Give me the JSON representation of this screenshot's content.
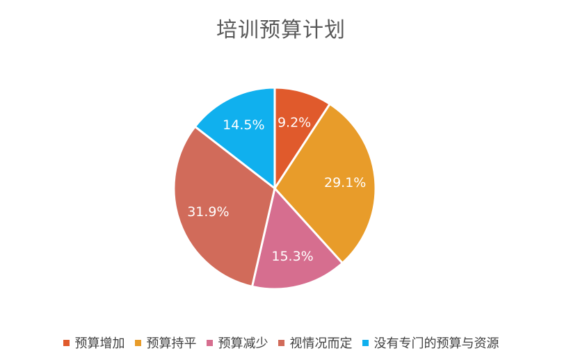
{
  "chart_data": {
    "type": "pie",
    "title": "培训预算计划",
    "categories": [
      "预算增加",
      "预算持平",
      "预算减少",
      "视情况而定",
      "没有专门的预算与资源"
    ],
    "values": [
      9.2,
      29.1,
      15.3,
      31.9,
      14.5
    ],
    "labels": [
      "9.2%",
      "29.1%",
      "15.3%",
      "31.9%",
      "14.5%"
    ],
    "colors": [
      "#E05A2C",
      "#E89C2A",
      "#D66E8F",
      "#D16B5A",
      "#10B0EE"
    ],
    "legend_position": "bottom",
    "start_angle": "top",
    "direction": "clockwise"
  }
}
